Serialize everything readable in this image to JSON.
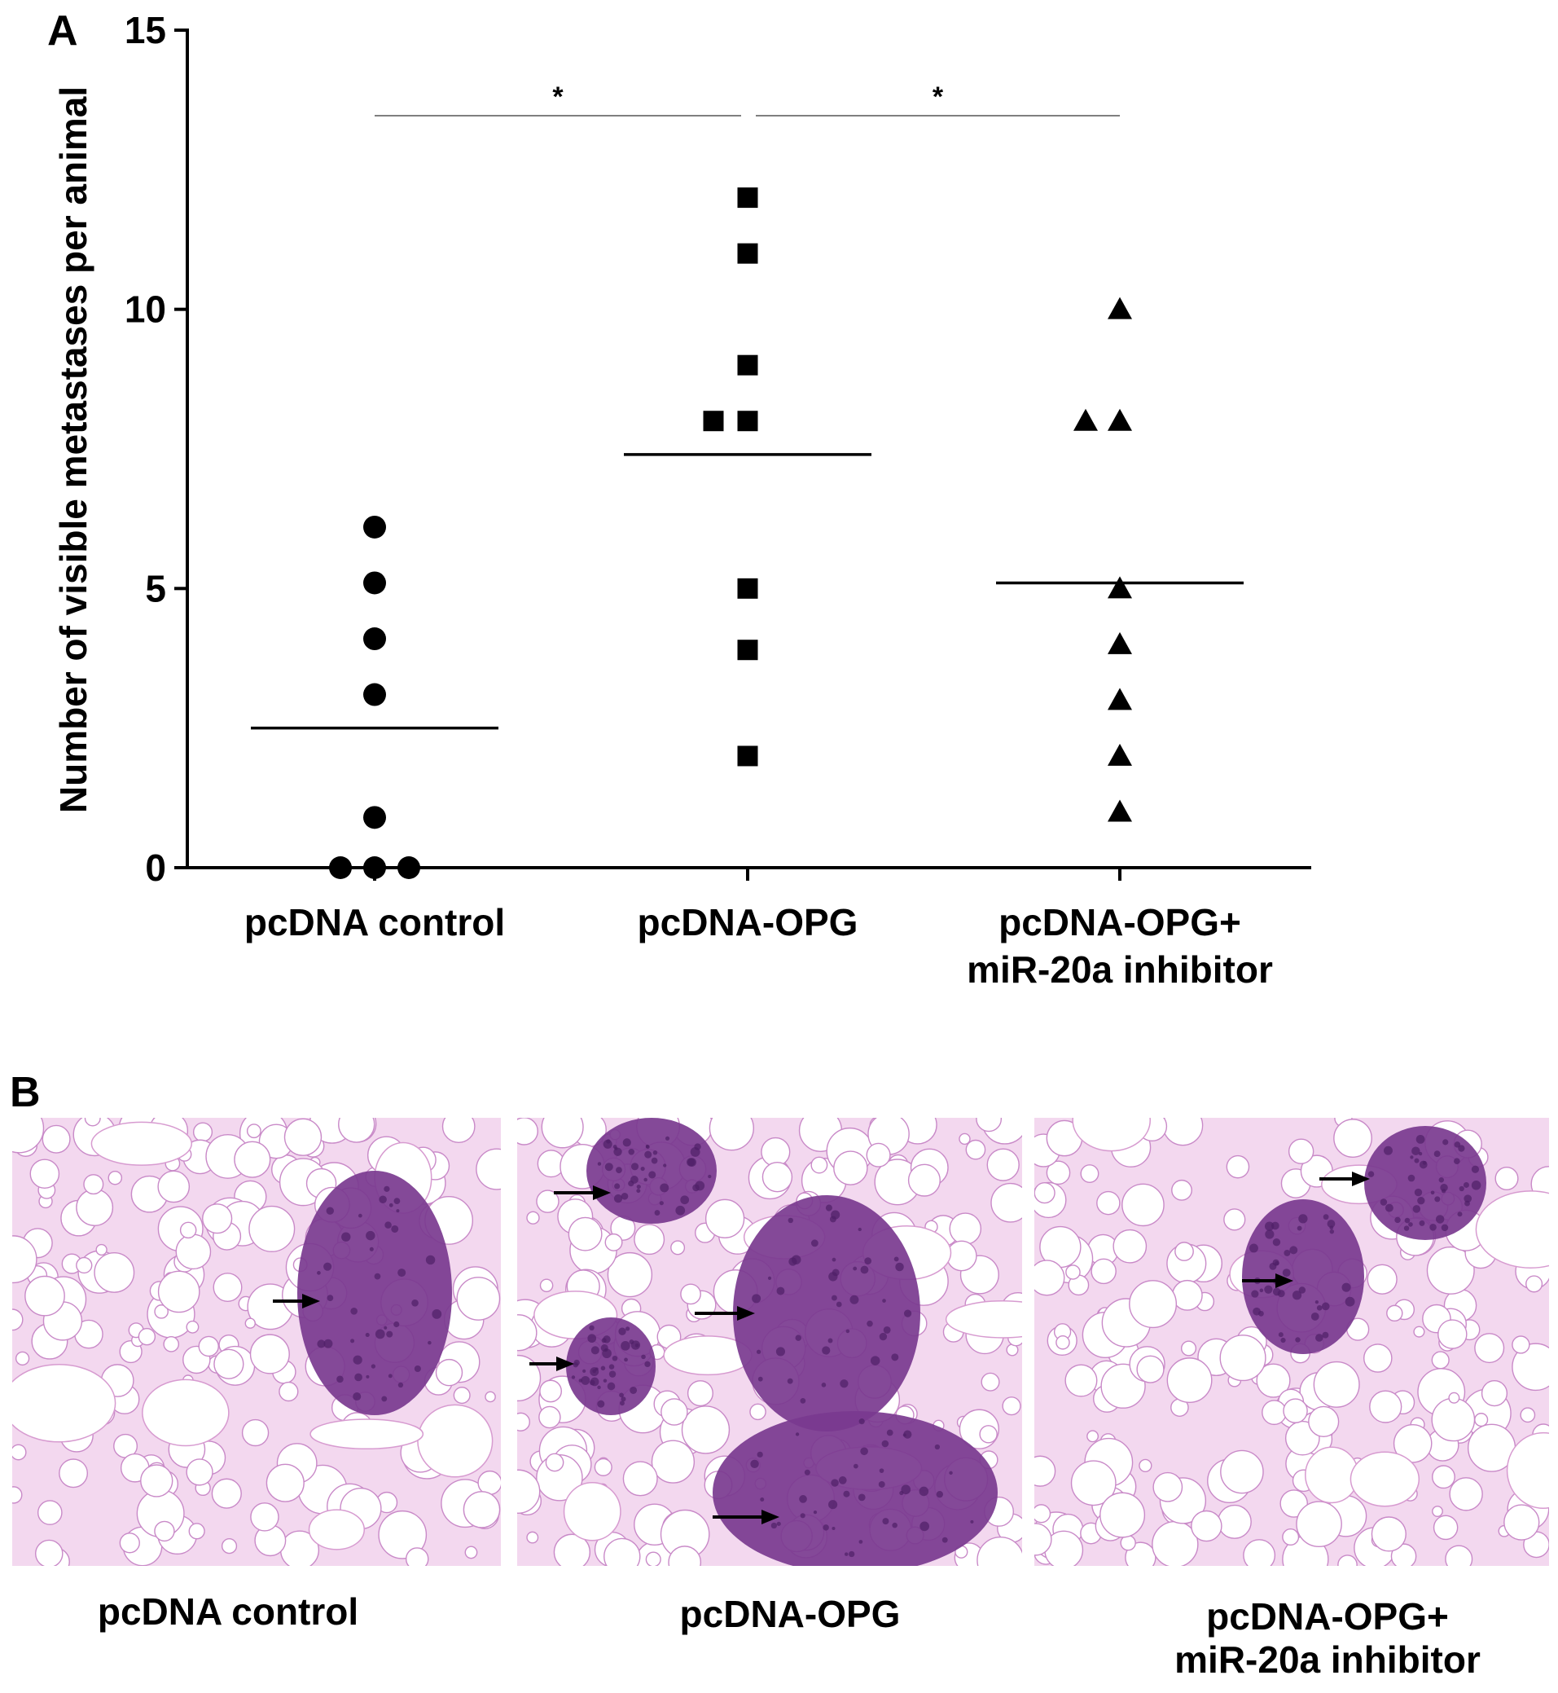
{
  "panel_a_label": "A",
  "panel_b_label": "B",
  "chart_data": {
    "type": "scatter",
    "ylabel": "Number of visible metastases per animal",
    "xlabel": "",
    "ylim": [
      0,
      15
    ],
    "yticks": [
      0,
      5,
      10,
      15
    ],
    "categories": [
      "pcDNA control",
      "pcDNA-OPG",
      "pcDNA-OPG+\nmiR-20a inhibitor"
    ],
    "series": [
      {
        "category": "pcDNA control",
        "marker": "circle",
        "mean": 2.5,
        "points": [
          {
            "offset": 0,
            "y": 6.1
          },
          {
            "offset": 0,
            "y": 5.1
          },
          {
            "offset": 0,
            "y": 4.1
          },
          {
            "offset": 0,
            "y": 3.1
          },
          {
            "offset": 0,
            "y": 0.9
          },
          {
            "offset": -1,
            "y": 0
          },
          {
            "offset": 0,
            "y": 0
          },
          {
            "offset": 1,
            "y": 0
          }
        ]
      },
      {
        "category": "pcDNA-OPG",
        "marker": "square",
        "mean": 7.4,
        "points": [
          {
            "offset": 0,
            "y": 12
          },
          {
            "offset": 0,
            "y": 11
          },
          {
            "offset": 0,
            "y": 9
          },
          {
            "offset": -1,
            "y": 8
          },
          {
            "offset": 0,
            "y": 8
          },
          {
            "offset": 0,
            "y": 5
          },
          {
            "offset": 0,
            "y": 3.9
          },
          {
            "offset": 0,
            "y": 2
          }
        ]
      },
      {
        "category": "pcDNA-OPG+\nmiR-20a inhibitor",
        "marker": "triangle",
        "mean": 5.1,
        "points": [
          {
            "offset": 0,
            "y": 10
          },
          {
            "offset": -1,
            "y": 8
          },
          {
            "offset": 0,
            "y": 8
          },
          {
            "offset": 0,
            "y": 5
          },
          {
            "offset": 0,
            "y": 4
          },
          {
            "offset": 0,
            "y": 3
          },
          {
            "offset": 0,
            "y": 2
          },
          {
            "offset": 0,
            "y": 1
          }
        ]
      }
    ],
    "significance": [
      {
        "from": 0,
        "to": 1,
        "label": "*"
      },
      {
        "from": 1,
        "to": 2,
        "label": "*"
      }
    ]
  },
  "micrographs": [
    {
      "caption": "pcDNA control"
    },
    {
      "caption": "pcDNA-OPG"
    },
    {
      "caption": "pcDNA-OPG+\nmiR-20a inhibitor"
    }
  ],
  "colors": {
    "marker": "#000000",
    "axis": "#000000",
    "tissue_bg": "#f3d8ef",
    "tissue_stroke": "#c98ac8",
    "nodule": "#7a3a8f"
  }
}
